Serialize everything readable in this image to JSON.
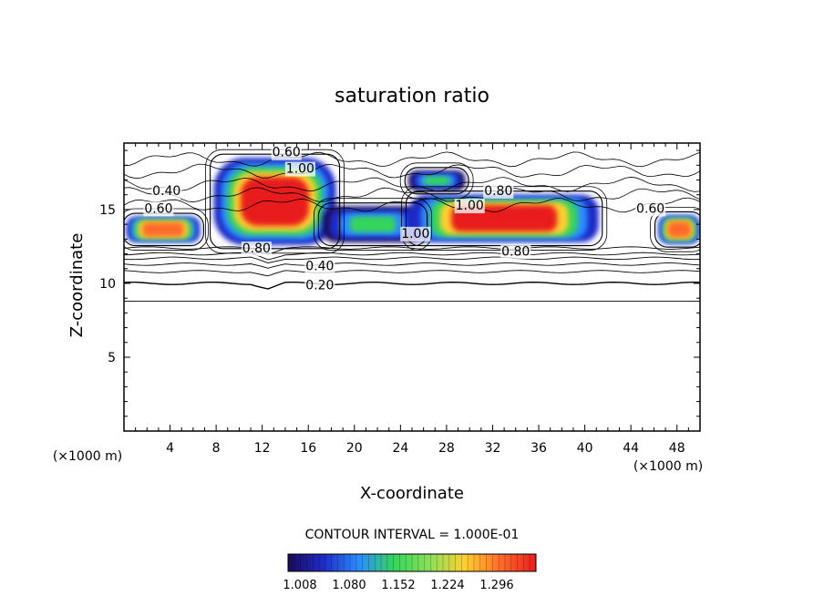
{
  "chart_data": {
    "type": "heatmap",
    "title": "saturation ratio",
    "xlabel": "X-coordinate",
    "ylabel": "Z-coordinate",
    "x_unit": "(×1000 m)",
    "x_unit_right": "(×1000 m)",
    "xlim": [
      0,
      50
    ],
    "ylim": [
      0,
      19.5
    ],
    "x_ticks": [
      4,
      8,
      12,
      16,
      20,
      24,
      28,
      32,
      36,
      40,
      44,
      48
    ],
    "y_ticks": [
      5,
      10,
      15
    ],
    "contour_interval_text": "CONTOUR INTERVAL = 1.000E-01",
    "colorbar": {
      "labels": [
        "1.008",
        "1.080",
        "1.152",
        "1.224",
        "1.296"
      ],
      "colors": [
        "#1a0a5a",
        "#1e2cc8",
        "#2a8cff",
        "#34d65a",
        "#8ce05a",
        "#ffcf2e",
        "#ff6a2a",
        "#e81e1e"
      ]
    },
    "contour_labels": [
      {
        "text": "0.60",
        "x": 14.1,
        "z": 18.9
      },
      {
        "text": "1.00",
        "x": 15.3,
        "z": 17.8
      },
      {
        "text": "0.40",
        "x": 3.7,
        "z": 16.3
      },
      {
        "text": "0.60",
        "x": 3.0,
        "z": 15.1
      },
      {
        "text": "0.80",
        "x": 32.5,
        "z": 16.3
      },
      {
        "text": "1.00",
        "x": 30.0,
        "z": 15.3
      },
      {
        "text": "0.60",
        "x": 45.7,
        "z": 15.1
      },
      {
        "text": "1.00",
        "x": 25.3,
        "z": 13.4
      },
      {
        "text": "0.80",
        "x": 34.0,
        "z": 12.2
      },
      {
        "text": "0.80",
        "x": 11.5,
        "z": 12.4
      },
      {
        "text": "0.40",
        "x": 17.0,
        "z": 11.2
      },
      {
        "text": "0.20",
        "x": 17.0,
        "z": 9.9
      }
    ],
    "regions": [
      {
        "name": "cloud-core-left-edge",
        "x0": 0.2,
        "x1": 6.6,
        "z0": 12.8,
        "z1": 14.5,
        "level": 1.28
      },
      {
        "name": "cloud-core-12-18",
        "x0": 7.8,
        "x1": 18.4,
        "z0": 12.6,
        "z1": 18.5,
        "level": 1.3
      },
      {
        "name": "cloud-core-19-26",
        "x0": 17.2,
        "x1": 26.0,
        "z0": 12.8,
        "z1": 15.2,
        "level": 1.1
      },
      {
        "name": "cloud-patch-26-30",
        "x0": 24.7,
        "x1": 29.6,
        "z0": 16.3,
        "z1": 17.6,
        "level": 1.06
      },
      {
        "name": "cloud-core-27-41",
        "x0": 24.8,
        "x1": 41.2,
        "z0": 12.8,
        "z1": 16.0,
        "level": 1.3
      },
      {
        "name": "cloud-core-right-edge",
        "x0": 46.4,
        "x1": 50.0,
        "z0": 12.7,
        "z1": 14.6,
        "level": 1.27
      }
    ]
  }
}
